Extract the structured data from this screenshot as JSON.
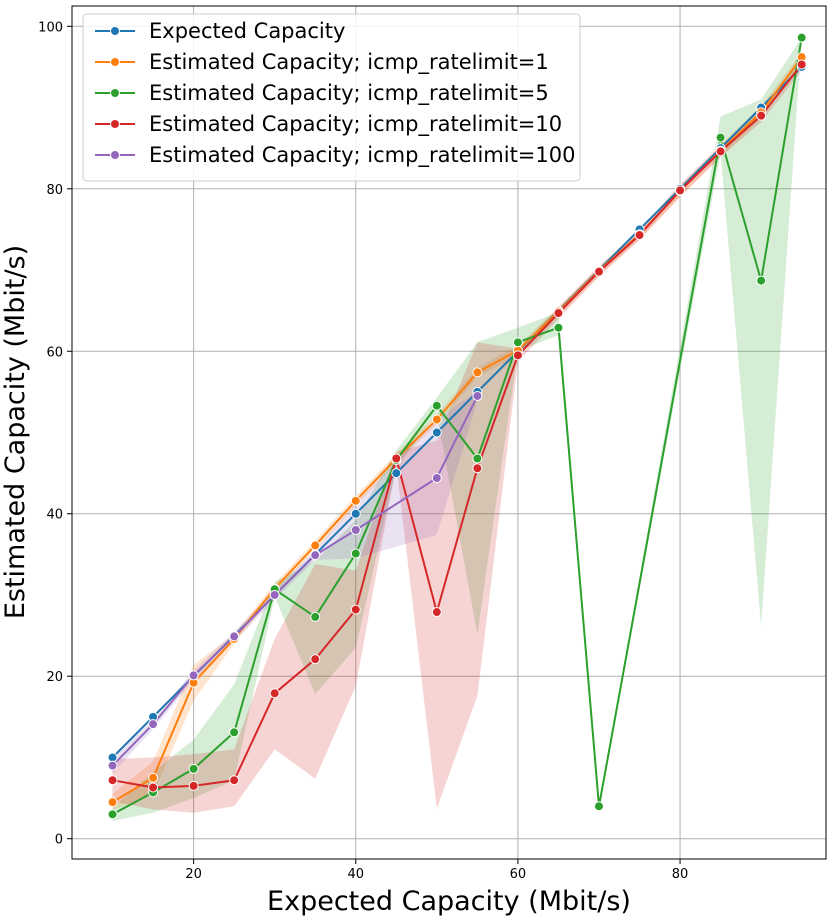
{
  "chart_data": {
    "type": "line",
    "xlabel": "Expected Capacity (Mbit/s)",
    "ylabel": "Estimated Capacity (Mbit/s)",
    "xlim": [
      5,
      98
    ],
    "ylim": [
      -2.5,
      102.5
    ],
    "xticks": [
      20,
      40,
      60,
      80
    ],
    "yticks": [
      0,
      20,
      40,
      60,
      80,
      100
    ],
    "grid": true,
    "legend_position": "top-left",
    "series": [
      {
        "name": "Expected Capacity",
        "color": "#1f77b4",
        "x": [
          10,
          15,
          20,
          25,
          30,
          35,
          40,
          45,
          50,
          55,
          60,
          65,
          70,
          75,
          80,
          85,
          90,
          95
        ],
        "y": [
          10,
          15,
          20,
          25,
          30,
          35,
          40,
          45,
          50,
          55,
          60,
          65,
          70,
          75,
          80,
          85,
          90,
          95
        ]
      },
      {
        "name": "Estimated Capacity; icmp_ratelimit=1",
        "color": "#ff7f0e",
        "x": [
          10,
          15,
          20,
          25,
          30,
          35,
          40,
          45,
          50,
          55,
          60,
          65,
          70,
          75,
          80,
          85,
          90,
          95
        ],
        "y": [
          4.5,
          7.5,
          19.2,
          24.6,
          30.8,
          36.1,
          41.6,
          46.8,
          51.6,
          57.4,
          60.1,
          64.9,
          69.9,
          74.4,
          79.7,
          84.7,
          89.4,
          96.2
        ],
        "band_lower": [
          3.5,
          5.5,
          17.0,
          24.0,
          30.2,
          35.5,
          41.0,
          46.2,
          51.0,
          56.8,
          59.5,
          64.3,
          69.3,
          73.8,
          79.0,
          84.0,
          88.6,
          95.6
        ],
        "band_upper": [
          5.5,
          9.5,
          21.4,
          25.2,
          31.4,
          36.7,
          42.2,
          47.4,
          52.2,
          58.0,
          60.7,
          65.5,
          70.5,
          75.0,
          80.4,
          85.4,
          90.2,
          96.8
        ]
      },
      {
        "name": "Estimated Capacity; icmp_ratelimit=5",
        "color": "#2ca02c",
        "x": [
          10,
          15,
          20,
          25,
          30,
          35,
          40,
          45,
          50,
          55,
          60,
          65,
          70,
          85,
          90,
          95
        ],
        "y": [
          3.0,
          5.7,
          8.6,
          13.1,
          30.7,
          27.3,
          35.1,
          46.6,
          53.3,
          46.8,
          61.1,
          62.9,
          4.0,
          86.3,
          68.7,
          98.6
        ],
        "band_lower": [
          2.2,
          3.2,
          5.0,
          7.2,
          29.8,
          17.8,
          23.5,
          45.6,
          52.3,
          25.2,
          60.0,
          62.0,
          4.0,
          84.4,
          26.2,
          98.6
        ],
        "band_upper": [
          3.8,
          8.2,
          12.2,
          19.0,
          31.6,
          34.2,
          39.2,
          47.8,
          54.3,
          61.1,
          62.9,
          64.8,
          4.0,
          88.9,
          91.0,
          98.6
        ]
      },
      {
        "name": "Estimated Capacity; icmp_ratelimit=10",
        "color": "#d62728",
        "x": [
          10,
          15,
          20,
          25,
          30,
          35,
          40,
          45,
          50,
          55,
          60,
          65,
          70,
          75,
          80,
          85,
          90,
          95
        ],
        "y": [
          7.2,
          6.3,
          6.5,
          7.2,
          17.9,
          22.1,
          28.2,
          46.8,
          27.9,
          45.6,
          59.5,
          64.7,
          69.8,
          74.3,
          79.8,
          84.6,
          89.0,
          95.3
        ],
        "band_lower": [
          4.6,
          3.6,
          3.2,
          4.0,
          11.0,
          7.4,
          18.8,
          46.0,
          3.7,
          17.6,
          58.7,
          64.0,
          69.2,
          73.7,
          79.0,
          83.9,
          88.2,
          94.6
        ],
        "band_upper": [
          9.8,
          10.0,
          10.4,
          11.0,
          24.6,
          33.8,
          33.0,
          47.6,
          49.0,
          61.1,
          60.3,
          65.4,
          70.4,
          74.9,
          80.5,
          85.3,
          89.8,
          96.0
        ]
      },
      {
        "name": "Estimated Capacity; icmp_ratelimit=100",
        "color": "#9467bd",
        "x": [
          10,
          15,
          20,
          25,
          30,
          35,
          40,
          50,
          55
        ],
        "y": [
          9.0,
          14.1,
          20.1,
          24.9,
          30.0,
          34.9,
          38.0,
          44.4,
          54.5
        ],
        "band_lower": [
          8.0,
          13.5,
          19.5,
          24.3,
          29.4,
          34.3,
          34.5,
          37.4,
          53.9
        ],
        "band_upper": [
          10.0,
          14.7,
          20.7,
          25.5,
          30.6,
          35.5,
          41.3,
          51.7,
          55.1
        ]
      }
    ]
  }
}
